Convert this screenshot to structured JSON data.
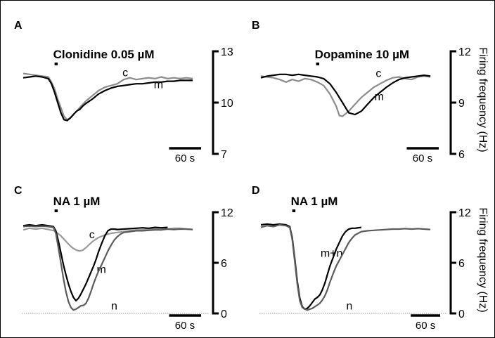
{
  "figure": {
    "ylabel": "Firing frequency (Hz)"
  },
  "chart_data": [
    {
      "panel": "A",
      "type": "line",
      "title": "Clonidine 0.05 µM",
      "ylim": [
        7,
        13
      ],
      "yticks": [
        "7",
        "10",
        "13"
      ],
      "ylabel": "",
      "xlim": [
        0,
        280
      ],
      "scale_bar": "60 s",
      "scale_bar_seconds": 60,
      "stim": [
        50,
        55
      ],
      "baseline": null,
      "series": [
        {
          "name": "c",
          "color": "#8c8c8c",
          "label_at": [
            158,
            11.55
          ],
          "x": [
            0,
            10,
            20,
            30,
            40,
            45,
            50,
            55,
            60,
            65,
            70,
            75,
            80,
            85,
            90,
            95,
            100,
            110,
            120,
            130,
            140,
            150,
            160,
            170,
            180,
            190,
            200,
            210,
            220,
            230,
            240,
            250,
            260,
            270
          ],
          "y": [
            11.7,
            11.65,
            11.6,
            11.55,
            11.5,
            11.2,
            10.8,
            10.2,
            9.7,
            9.2,
            9.0,
            9.1,
            9.3,
            9.5,
            9.7,
            9.9,
            10.1,
            10.4,
            10.7,
            10.9,
            11.0,
            11.1,
            11.35,
            11.45,
            11.35,
            11.4,
            11.45,
            11.4,
            11.5,
            11.4,
            11.45,
            11.4,
            11.45,
            11.4
          ]
        },
        {
          "name": "m",
          "color": "#000000",
          "label_at": [
            208,
            10.85
          ],
          "x": [
            0,
            10,
            20,
            30,
            40,
            45,
            50,
            55,
            60,
            65,
            70,
            75,
            80,
            85,
            90,
            95,
            100,
            110,
            120,
            130,
            140,
            150,
            160,
            170,
            180,
            190,
            200,
            210,
            220,
            230,
            240,
            250,
            260,
            270
          ],
          "y": [
            11.45,
            11.5,
            11.55,
            11.5,
            11.4,
            11.1,
            10.6,
            10.0,
            9.4,
            9.0,
            8.95,
            9.1,
            9.3,
            9.5,
            9.6,
            9.8,
            9.95,
            10.2,
            10.5,
            10.7,
            10.85,
            10.95,
            11.0,
            11.05,
            11.1,
            11.1,
            11.15,
            11.2,
            11.2,
            11.25,
            11.25,
            11.3,
            11.3,
            11.3
          ]
        }
      ]
    },
    {
      "panel": "B",
      "type": "line",
      "title": "Dopamine 10 µM",
      "ylim": [
        6,
        12
      ],
      "yticks": [
        "6",
        "9",
        "12"
      ],
      "ylabel": "Firing frequency (Hz)",
      "xlim": [
        0,
        280
      ],
      "scale_bar": "60 s",
      "scale_bar_seconds": 60,
      "stim": [
        88,
        93
      ],
      "baseline": null,
      "series": [
        {
          "name": "c",
          "color": "#8c8c8c",
          "label_at": [
            183,
            10.5
          ],
          "x": [
            0,
            10,
            20,
            30,
            40,
            50,
            60,
            70,
            80,
            90,
            100,
            110,
            120,
            125,
            130,
            140,
            150,
            160,
            170,
            180,
            190,
            200,
            210,
            220,
            230,
            240,
            250,
            260,
            270
          ],
          "y": [
            10.55,
            10.5,
            10.45,
            10.35,
            10.2,
            10.35,
            10.25,
            10.4,
            10.35,
            10.2,
            10.0,
            9.5,
            8.8,
            8.25,
            8.2,
            8.5,
            8.9,
            9.3,
            9.6,
            9.9,
            10.1,
            10.3,
            10.45,
            10.5,
            10.4,
            10.35,
            10.5,
            10.55,
            10.5
          ]
        },
        {
          "name": "m",
          "color": "#000000",
          "label_at": [
            181,
            9.15
          ],
          "x": [
            0,
            10,
            20,
            30,
            40,
            50,
            60,
            70,
            80,
            90,
            100,
            110,
            120,
            130,
            140,
            150,
            160,
            170,
            180,
            190,
            200,
            210,
            220,
            230,
            240,
            250,
            260,
            270
          ],
          "y": [
            10.45,
            10.55,
            10.6,
            10.65,
            10.65,
            10.6,
            10.65,
            10.6,
            10.55,
            10.5,
            10.4,
            10.1,
            9.6,
            9.0,
            8.4,
            8.3,
            8.5,
            8.9,
            9.3,
            9.6,
            9.9,
            10.15,
            10.35,
            10.45,
            10.5,
            10.55,
            10.6,
            10.55
          ]
        }
      ]
    },
    {
      "panel": "C",
      "type": "line",
      "title": "NA 1 µM",
      "ylim": [
        0,
        12
      ],
      "yticks": [
        "0",
        "6",
        "12"
      ],
      "ylabel": "",
      "xlim": [
        0,
        280
      ],
      "scale_bar": "60 s",
      "scale_bar_seconds": 60,
      "stim": [
        50,
        55
      ],
      "baseline": 0,
      "series": [
        {
          "name": "c",
          "color": "#9a9a9a",
          "label_at": [
            105,
            8.9
          ],
          "x": [
            0,
            10,
            20,
            30,
            40,
            50,
            55,
            60,
            65,
            70,
            75,
            80,
            85,
            90,
            95,
            100,
            110,
            120,
            130,
            140,
            150,
            160,
            170,
            180,
            190,
            200,
            210,
            220,
            230,
            240,
            250,
            260,
            270
          ],
          "y": [
            9.9,
            10.1,
            10.0,
            10.1,
            9.95,
            9.8,
            9.5,
            9.2,
            8.8,
            8.4,
            8.0,
            7.7,
            7.5,
            7.4,
            7.5,
            7.8,
            8.5,
            9.0,
            9.3,
            9.5,
            9.6,
            9.7,
            9.8,
            9.9,
            9.9,
            10.0,
            10.0,
            10.1,
            10.0,
            10.1,
            10.1,
            10.0,
            9.95
          ]
        },
        {
          "name": "m",
          "color": "#000000",
          "label_at": [
            117,
            4.8
          ],
          "x": [
            0,
            10,
            20,
            30,
            40,
            48,
            52,
            56,
            60,
            64,
            68,
            72,
            76,
            80,
            84,
            88,
            92,
            96,
            100,
            104,
            108,
            112,
            116,
            120,
            125,
            130,
            135,
            140,
            145,
            150,
            160,
            170,
            180,
            190,
            200,
            210,
            220,
            230
          ],
          "y": [
            10.4,
            10.5,
            10.4,
            10.5,
            10.4,
            10.3,
            9.8,
            8.6,
            7.2,
            5.8,
            4.6,
            3.5,
            2.6,
            1.9,
            1.5,
            1.8,
            2.3,
            2.9,
            3.5,
            4.2,
            4.9,
            5.6,
            6.4,
            7.3,
            8.3,
            9.2,
            9.8,
            10.0,
            10.0,
            9.95,
            10.0,
            10.05,
            10.1,
            10.15,
            10.1,
            10.2,
            10.15,
            10.2
          ]
        },
        {
          "name": "n",
          "color": "#5c5c5c",
          "label_at": [
            140,
            0.45
          ],
          "x": [
            0,
            10,
            20,
            30,
            40,
            48,
            52,
            56,
            60,
            64,
            68,
            72,
            76,
            80,
            84,
            88,
            92,
            96,
            100,
            104,
            108,
            112,
            116,
            120,
            125,
            130,
            135,
            140,
            145,
            150,
            155,
            160,
            170,
            180,
            190,
            200,
            210,
            220,
            230,
            240,
            250,
            260,
            270
          ],
          "y": [
            10.3,
            10.35,
            10.3,
            10.35,
            10.3,
            10.2,
            9.5,
            7.8,
            6.0,
            4.2,
            2.6,
            1.4,
            0.7,
            0.4,
            0.5,
            0.7,
            0.9,
            0.95,
            1.2,
            1.8,
            2.6,
            3.5,
            4.3,
            5.0,
            5.8,
            6.6,
            7.4,
            8.1,
            8.7,
            9.1,
            9.4,
            9.6,
            9.7,
            9.8,
            9.8,
            9.85,
            9.9,
            9.9,
            10.0,
            9.95,
            10.0,
            10.0,
            9.95
          ]
        }
      ]
    },
    {
      "panel": "D",
      "type": "line",
      "title": "NA 1 µM",
      "ylim": [
        0,
        12
      ],
      "yticks": [
        "0",
        "6",
        "12"
      ],
      "ylabel": "Firing frequency (Hz)",
      "xlim": [
        0,
        280
      ],
      "scale_bar": "60 s",
      "scale_bar_seconds": 60,
      "stim": [
        50,
        55
      ],
      "baseline": 0,
      "series": [
        {
          "name": "m+n",
          "color": "#000000",
          "label_at": [
            95,
            6.7
          ],
          "x": [
            0,
            10,
            20,
            30,
            40,
            46,
            50,
            54,
            58,
            62,
            66,
            70,
            74,
            78,
            82,
            86,
            90,
            94,
            98,
            102,
            106,
            110,
            115,
            120,
            125,
            130,
            135,
            140,
            145,
            150,
            155,
            160
          ],
          "y": [
            10.5,
            10.6,
            10.5,
            10.6,
            10.5,
            10.3,
            9.0,
            6.5,
            3.8,
            1.8,
            0.8,
            0.5,
            0.6,
            0.9,
            1.3,
            1.7,
            1.9,
            2.2,
            2.8,
            3.6,
            4.6,
            5.6,
            6.6,
            7.6,
            8.4,
            9.2,
            9.7,
            10.0,
            10.1,
            10.1,
            10.15,
            10.2
          ]
        },
        {
          "name": "n",
          "color": "#5c5c5c",
          "label_at": [
            136,
            0.45
          ],
          "x": [
            0,
            10,
            20,
            30,
            40,
            46,
            50,
            54,
            58,
            62,
            66,
            70,
            74,
            78,
            82,
            86,
            90,
            94,
            98,
            102,
            106,
            110,
            115,
            120,
            125,
            130,
            135,
            140,
            145,
            150,
            155,
            160,
            170,
            180,
            190,
            200,
            210,
            220,
            230,
            240,
            250,
            260,
            270
          ],
          "y": [
            10.2,
            10.4,
            10.3,
            10.5,
            10.4,
            10.2,
            8.8,
            6.2,
            3.5,
            1.5,
            0.7,
            0.5,
            0.4,
            0.5,
            0.6,
            0.8,
            1.0,
            1.2,
            1.6,
            2.1,
            2.8,
            3.7,
            4.7,
            5.6,
            6.3,
            7.0,
            7.7,
            8.4,
            8.9,
            9.3,
            9.5,
            9.7,
            9.8,
            9.85,
            9.9,
            9.95,
            10.0,
            10.0,
            10.05,
            10.0,
            10.05,
            10.0,
            9.95
          ]
        }
      ]
    }
  ]
}
